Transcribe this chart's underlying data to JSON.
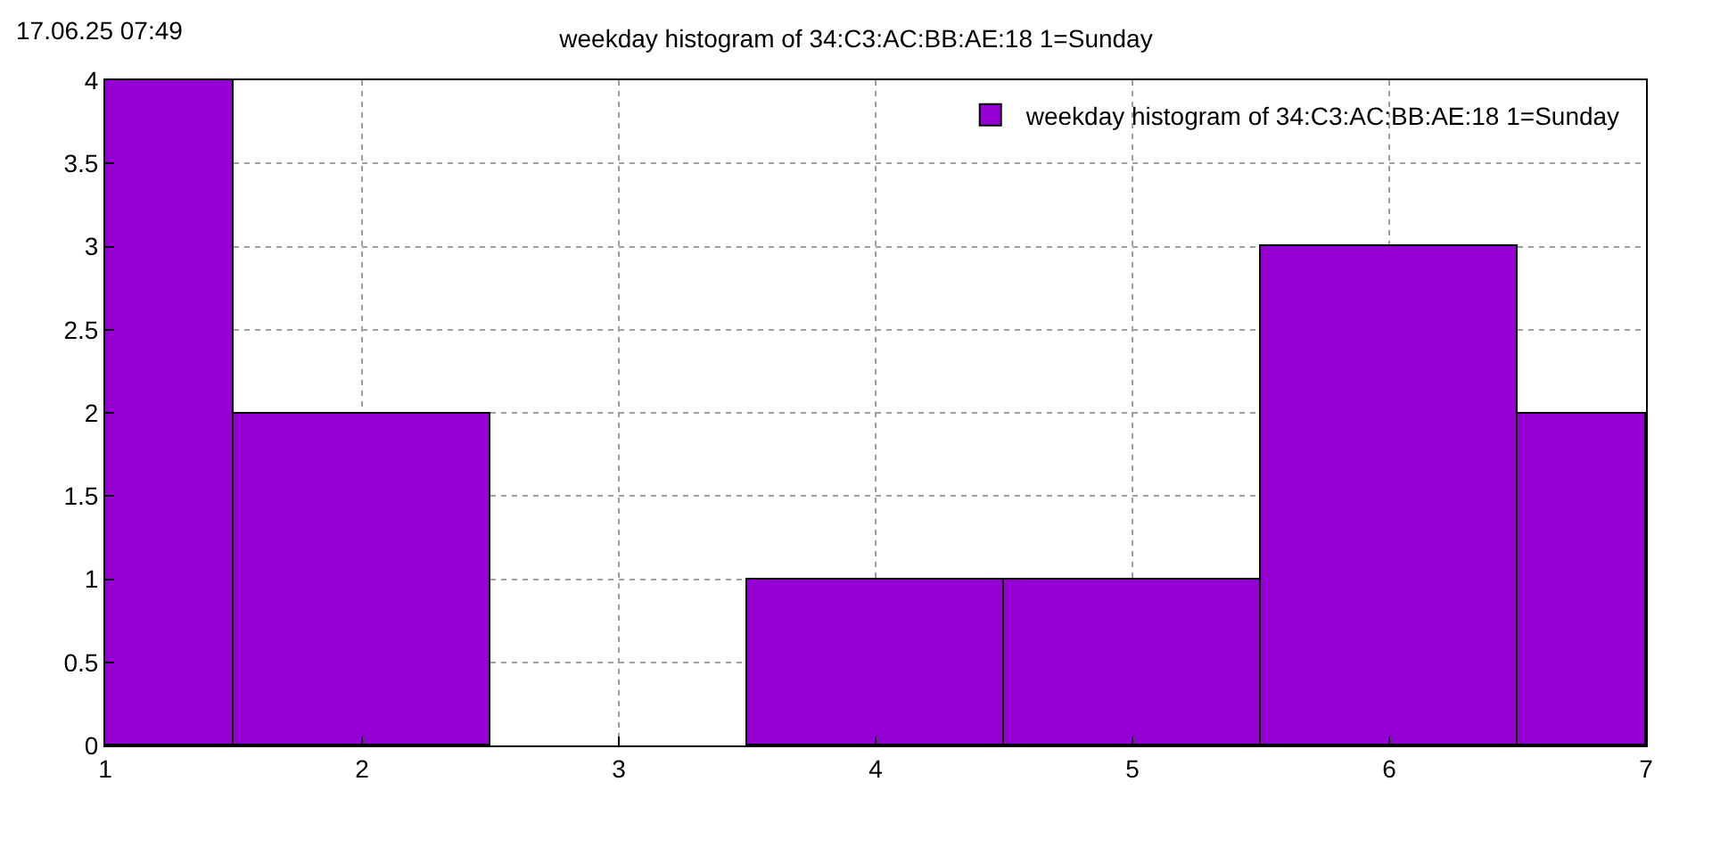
{
  "chart_data": {
    "type": "histogram",
    "title": "weekday histogram of 34:C3:AC:BB:AE:18 1=Sunday",
    "annotations": [
      "17.06.25 07:49"
    ],
    "bins": [
      1,
      1.5,
      2.5,
      3.5,
      4.5,
      5.5,
      6.5,
      7
    ],
    "series": [
      {
        "name": "weekday histogram of 34:C3:AC:BB:AE:18 1=Sunday",
        "color": "#9400d3",
        "values": [
          4,
          2,
          0,
          1,
          1,
          3,
          2
        ]
      }
    ],
    "xlim": [
      1,
      7
    ],
    "xticks": [
      1,
      2,
      3,
      4,
      5,
      6,
      7
    ],
    "ylim": [
      0,
      4
    ],
    "yticks": [
      0,
      0.5,
      1,
      1.5,
      2,
      2.5,
      3,
      3.5,
      4
    ],
    "grid": true,
    "legend": "top right"
  }
}
